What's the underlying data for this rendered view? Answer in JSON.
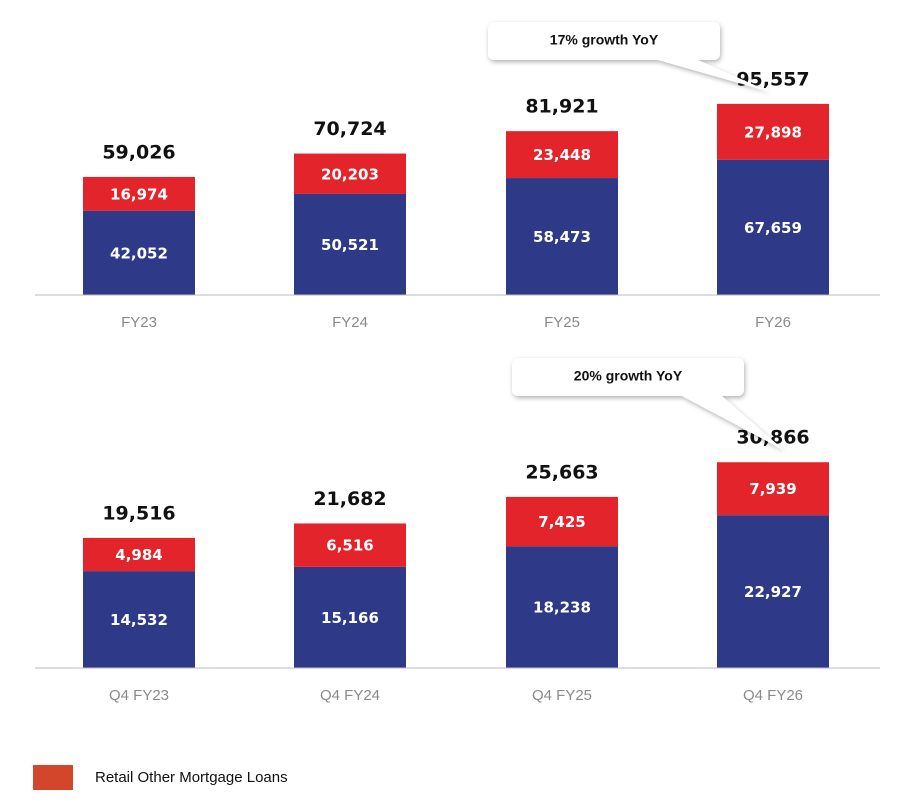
{
  "chart_data": [
    {
      "type": "bar",
      "stacked": true,
      "categories": [
        "FY23",
        "FY24",
        "FY25",
        "FY26"
      ],
      "series": [
        {
          "color": "#2e3a87",
          "values": [
            42052,
            50521,
            58473,
            67659
          ],
          "value_labels": [
            "42,052",
            "50,521",
            "58,473",
            "67,659"
          ]
        },
        {
          "color": "#e3242b",
          "values": [
            16974,
            20203,
            23448,
            27898
          ],
          "value_labels": [
            "16,974",
            "20,203",
            "23,448",
            "27,898"
          ]
        }
      ],
      "totals": [
        59026,
        70724,
        81921,
        95557
      ],
      "total_labels": [
        "59,026",
        "70,724",
        "81,921",
        "95,557"
      ],
      "annotation": "17% growth YoY",
      "ylim": [
        0,
        130000
      ]
    },
    {
      "type": "bar",
      "stacked": true,
      "categories": [
        "Q4 FY23",
        "Q4 FY24",
        "Q4 FY25",
        "Q4 FY26"
      ],
      "series": [
        {
          "color": "#2e3a87",
          "values": [
            14532,
            15166,
            18238,
            22927
          ],
          "value_labels": [
            "14,532",
            "15,166",
            "18,238",
            "22,927"
          ]
        },
        {
          "color": "#e3242b",
          "values": [
            4984,
            6516,
            7425,
            7939
          ],
          "value_labels": [
            "4,984",
            "6,516",
            "7,425",
            "7,939"
          ]
        }
      ],
      "totals": [
        19516,
        21682,
        25663,
        30866
      ],
      "total_labels": [
        "19,516",
        "21,682",
        "25,663",
        "30,866"
      ],
      "annotation": "20% growth YoY",
      "ylim": [
        0,
        39000
      ]
    }
  ],
  "legend": {
    "label": "Retail Other Mortgage Loans",
    "color": "#d3462c"
  }
}
